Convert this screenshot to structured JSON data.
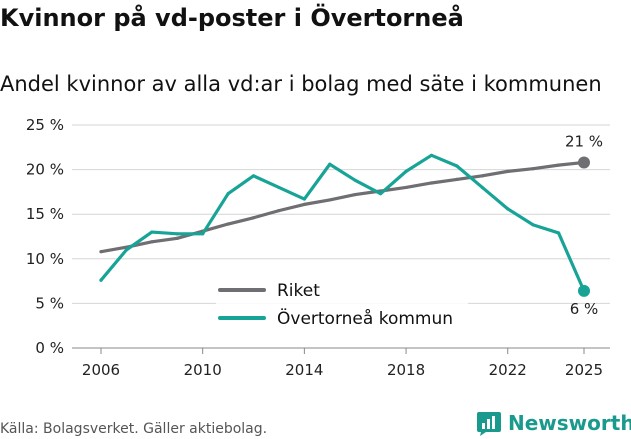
{
  "chart_data": {
    "type": "line",
    "title": "Kvinnor på vd-poster i Övertorneå",
    "subtitle": "Andel kvinnor av alla vd:ar i bolag med säte i kommunen",
    "xlabel": "",
    "ylabel": "",
    "x_ticks": [
      "2006",
      "2010",
      "2014",
      "2018",
      "2022",
      "2025"
    ],
    "y_ticks": [
      "0 %",
      "5 %",
      "10 %",
      "15 %",
      "20 %",
      "25 %"
    ],
    "xlim": [
      2006,
      2025
    ],
    "ylim": [
      0,
      25
    ],
    "grid": true,
    "legend_position": "bottom-center",
    "series": [
      {
        "name": "Riket",
        "color": "#6e6e73",
        "x": [
          2006,
          2007,
          2008,
          2009,
          2010,
          2011,
          2012,
          2013,
          2014,
          2015,
          2016,
          2017,
          2018,
          2019,
          2020,
          2021,
          2022,
          2023,
          2024,
          2025
        ],
        "values": [
          10.8,
          11.3,
          11.9,
          12.3,
          13.1,
          13.9,
          14.6,
          15.4,
          16.1,
          16.6,
          17.2,
          17.6,
          18.0,
          18.5,
          18.9,
          19.3,
          19.8,
          20.1,
          20.5,
          20.8
        ],
        "end_label": "21 %"
      },
      {
        "name": "Övertorneå kommun",
        "color": "#17a497",
        "x": [
          2006,
          2007,
          2008,
          2009,
          2010,
          2011,
          2012,
          2013,
          2014,
          2015,
          2016,
          2017,
          2018,
          2019,
          2020,
          2021,
          2022,
          2023,
          2024,
          2025
        ],
        "values": [
          7.6,
          11.0,
          13.0,
          12.8,
          12.8,
          17.3,
          19.3,
          18.0,
          16.7,
          20.6,
          18.8,
          17.3,
          19.8,
          21.6,
          20.4,
          18.0,
          15.6,
          13.8,
          12.9,
          6.4
        ],
        "end_label": "6 %"
      }
    ]
  },
  "source": "Källa: Bolagsverket. Gäller aktiebolag.",
  "brand": {
    "name": "Newsworthy",
    "color": "#1a9a8c"
  }
}
